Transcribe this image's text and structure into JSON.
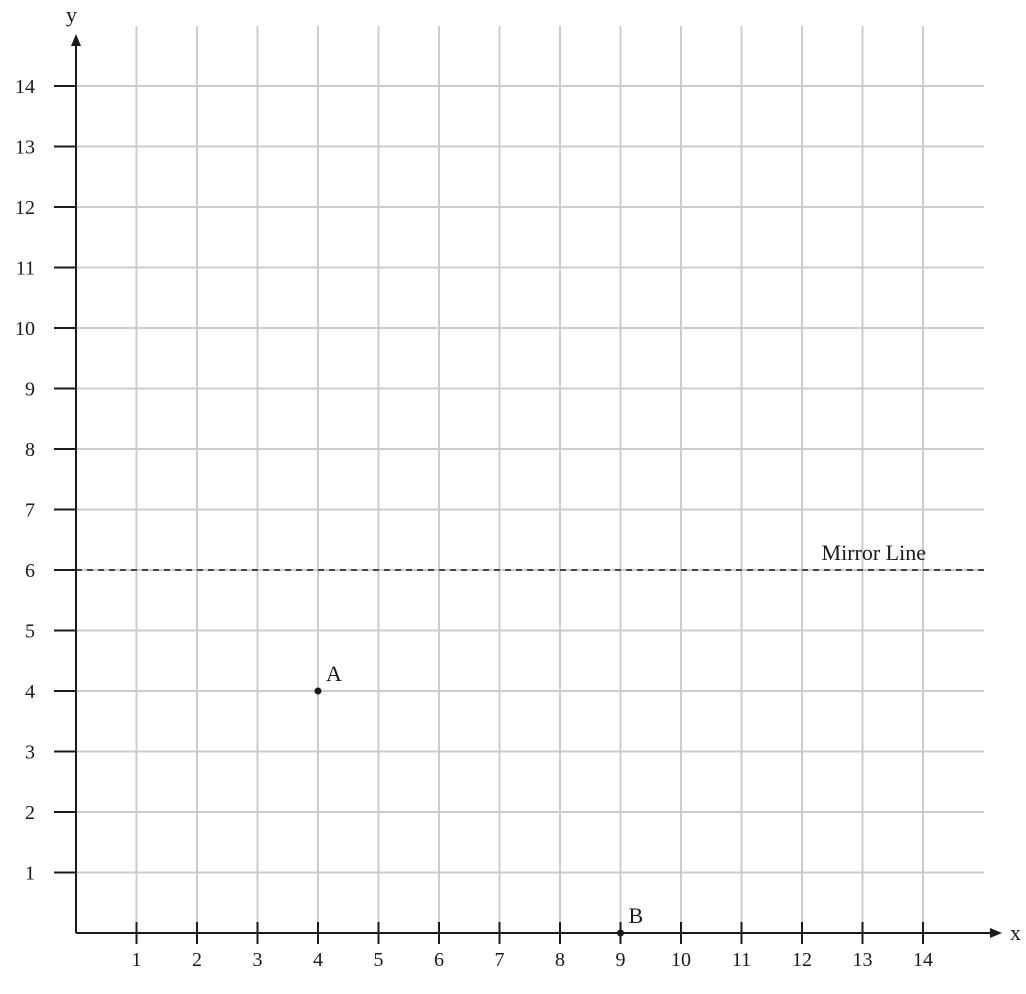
{
  "chart_data": {
    "type": "scatter",
    "title": "",
    "xlabel": "x",
    "ylabel": "y",
    "xlim": [
      0,
      15
    ],
    "ylim": [
      0,
      14.8
    ],
    "x_ticks": [
      "1",
      "2",
      "3",
      "4",
      "5",
      "6",
      "7",
      "8",
      "9",
      "10",
      "11",
      "12",
      "13",
      "14"
    ],
    "y_ticks": [
      "1",
      "2",
      "3",
      "4",
      "5",
      "6",
      "7",
      "8",
      "9",
      "10",
      "11",
      "12",
      "13",
      "14"
    ],
    "grid": true,
    "points": [
      {
        "label": "A",
        "x": 4,
        "y": 4
      },
      {
        "label": "B",
        "x": 9,
        "y": 0
      }
    ],
    "mirror_line": {
      "label": "Mirror Line",
      "y": 6,
      "style": "dashed"
    },
    "colors": {
      "grid": "#cccccc",
      "axis": "#1a1a1a",
      "point": "#1a1a1a"
    }
  }
}
